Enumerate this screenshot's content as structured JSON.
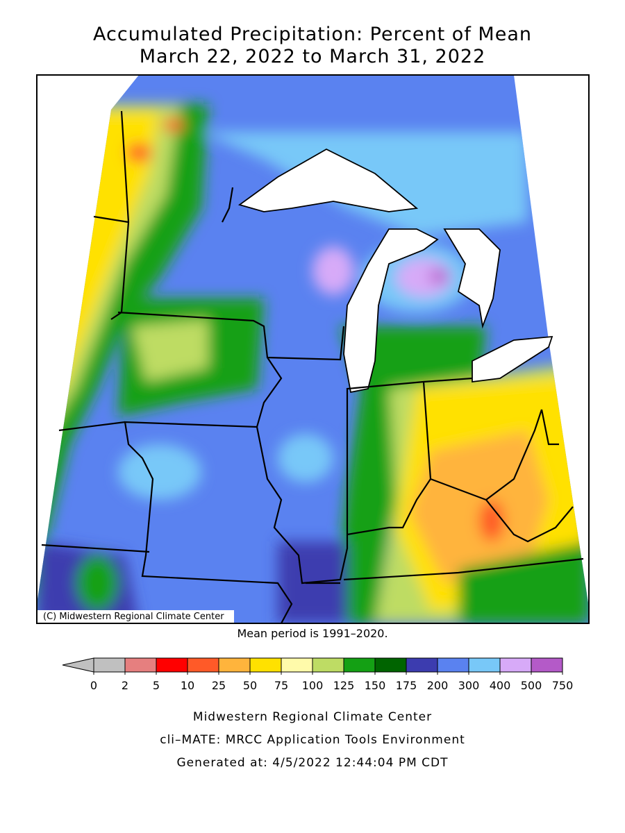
{
  "title": [
    "Accumulated Precipitation: Percent of Mean",
    "March 22, 2022 to March 31, 2022"
  ],
  "credit": "(C) Midwestern Regional Climate Center",
  "note": "Mean period is 1991–2020.",
  "legend": {
    "ticks": [
      0,
      2,
      5,
      10,
      25,
      50,
      75,
      100,
      125,
      150,
      175,
      200,
      300,
      400,
      500,
      750
    ],
    "under_color": "#c0c0c0",
    "colors": [
      "#c0c0c0",
      "#e67f7f",
      "#ff0000",
      "#ff5a28",
      "#ffb43c",
      "#ffe100",
      "#fffaaa",
      "#bedc64",
      "#14a014",
      "#006400",
      "#3c3caf",
      "#5a82f0",
      "#78c8f8",
      "#d7aaf8",
      "#b45ac8"
    ]
  },
  "footer": [
    "Midwestern Regional Climate Center",
    "cli–MATE: MRCC Application Tools Environment",
    "Generated at: 4/5/2022 12:44:04 PM CDT"
  ]
}
